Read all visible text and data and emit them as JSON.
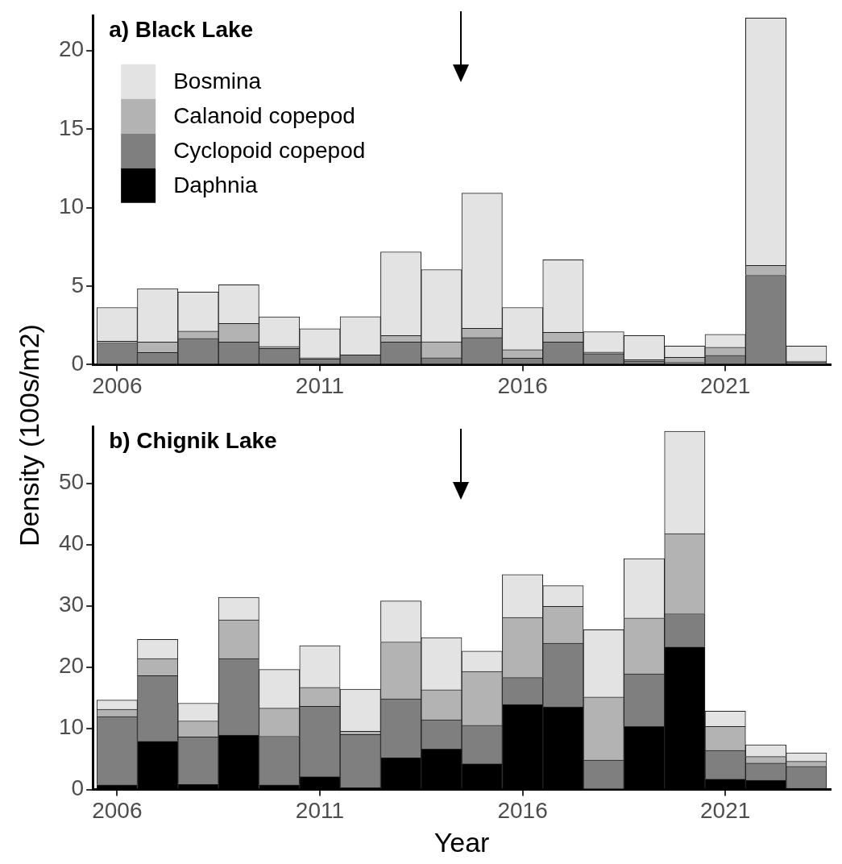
{
  "chart_data": [
    {
      "type": "bar",
      "title": "a) Black Lake",
      "ylabel": "Density (100s/m2)",
      "stacked": true,
      "legend": "top left",
      "grid": false,
      "x": [
        2006,
        2007,
        2008,
        2009,
        2010,
        2011,
        2012,
        2013,
        2014,
        2015,
        2016,
        2017,
        2018,
        2019,
        2020,
        2021,
        2022,
        2023
      ],
      "xlim": [
        2005.4,
        2023.6
      ],
      "xticks": [
        2006,
        2011,
        2016,
        2021
      ],
      "ylim": [
        0,
        22.2
      ],
      "yticks": [
        0,
        5,
        10,
        15,
        20
      ],
      "series": [
        {
          "name": "Daphnia",
          "color": "#000000",
          "values": [
            0,
            0,
            0,
            0,
            0,
            0,
            0,
            0,
            0,
            0,
            0,
            0,
            0,
            0,
            0,
            0,
            0,
            0
          ]
        },
        {
          "name": "Cyclopoid copepod",
          "color": "#7f7f7f",
          "values": [
            1.38,
            0.77,
            1.67,
            1.44,
            1.03,
            0.36,
            0.62,
            1.44,
            0.44,
            1.72,
            0.41,
            1.44,
            0.7,
            0.22,
            0.15,
            0.6,
            5.69,
            0.18
          ]
        },
        {
          "name": "Calanoid copepod",
          "color": "#b3b3b3",
          "values": [
            0.11,
            0.67,
            0.46,
            1.18,
            0.13,
            0.08,
            null,
            0.41,
            1.01,
            0.59,
            0.54,
            0.61,
            0.1,
            0.09,
            0.31,
            0.51,
            0.63,
            0.04
          ]
        },
        {
          "name": "Bosmina",
          "color": "#e3e3e3",
          "values": [
            2.15,
            3.4,
            2.49,
            2.47,
            1.88,
            1.85,
            2.44,
            5.33,
            4.6,
            8.61,
            2.69,
            4.63,
            1.3,
            1.54,
            0.72,
            0.82,
            15.75,
            0.96
          ]
        }
      ]
    },
    {
      "type": "bar",
      "title": "b) Chignik Lake",
      "xlabel": "Year",
      "stacked": true,
      "grid": false,
      "x": [
        2006,
        2007,
        2008,
        2009,
        2010,
        2011,
        2012,
        2013,
        2014,
        2015,
        2016,
        2017,
        2018,
        2019,
        2020,
        2021,
        2022,
        2023
      ],
      "xlim": [
        2005.4,
        2023.6
      ],
      "xticks": [
        2006,
        2011,
        2016,
        2021
      ],
      "ylim": [
        0,
        59.2
      ],
      "yticks": [
        0,
        10,
        20,
        30,
        40,
        50
      ],
      "series": [
        {
          "color": "#000000",
          "values": [
            0.8,
            7.9,
            0.9,
            8.9,
            0.8,
            2.1,
            0.3,
            5.2,
            6.6,
            4.2,
            13.9,
            13.5,
            null,
            10.3,
            23.3,
            1.7,
            1.5,
            0.2
          ]
        },
        {
          "color": "#7f7f7f",
          "values": [
            11.1,
            10.7,
            7.7,
            12.5,
            7.9,
            11.5,
            8.7,
            9.6,
            4.8,
            6.3,
            4.4,
            10.4,
            4.8,
            8.6,
            5.4,
            4.7,
            2.8,
            3.6
          ]
        },
        {
          "color": "#b3b3b3",
          "values": [
            1.2,
            2.8,
            2.6,
            6.3,
            4.6,
            3.1,
            0.5,
            9.3,
            4.9,
            8.8,
            9.8,
            6.0,
            10.3,
            9.1,
            13.1,
            3.9,
            1.1,
            0.8
          ]
        },
        {
          "color": "#e3e3e3",
          "values": [
            1.5,
            3.1,
            2.9,
            3.7,
            6.3,
            6.8,
            6.9,
            6.7,
            8.5,
            3.3,
            7.0,
            3.4,
            11.0,
            9.7,
            16.7,
            2.5,
            1.9,
            1.4
          ]
        }
      ]
    }
  ]
}
